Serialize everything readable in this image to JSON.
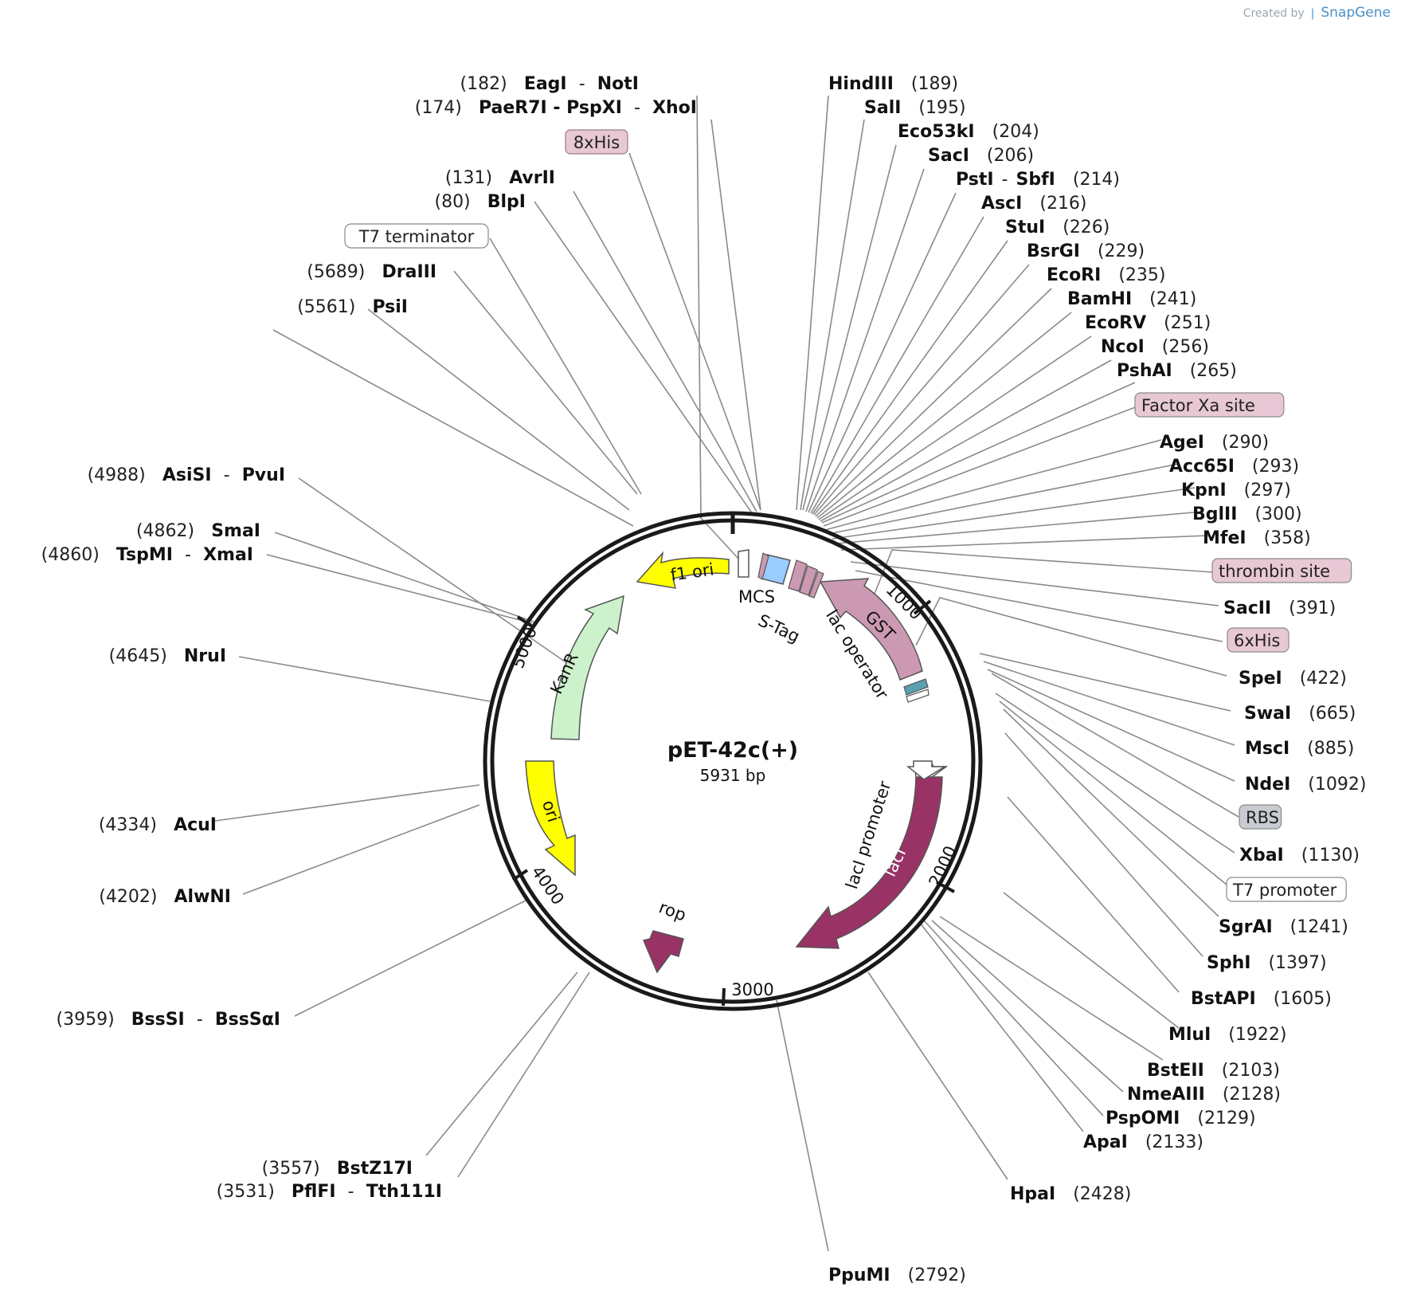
{
  "credit": {
    "prefix": "Created by",
    "brand": "SnapGene"
  },
  "plasmid": {
    "name": "pET-42c(+)",
    "length_label": "5931 bp",
    "length": 5931
  },
  "ticks": [
    {
      "position": 1000,
      "label": "1000"
    },
    {
      "position": 2000,
      "label": "2000"
    },
    {
      "position": 3000,
      "label": "3000"
    },
    {
      "position": 4000,
      "label": "4000"
    },
    {
      "position": 5000,
      "label": "5000"
    }
  ],
  "features": [
    {
      "name": "f1 ori",
      "color": "#ffff00",
      "text_color": "#111111"
    },
    {
      "name": "KanR",
      "color": "#ccf2cc",
      "text_color": "#111111"
    },
    {
      "name": "ori",
      "color": "#ffff00",
      "text_color": "#111111"
    },
    {
      "name": "rop",
      "color": "#993366",
      "text_color": "#111111"
    },
    {
      "name": "lacI",
      "color": "#993366",
      "text_color": "#ffffff"
    },
    {
      "name": "lacI promoter",
      "color": "#ffffff",
      "text_color": "#111111"
    },
    {
      "name": "GST",
      "color": "#cc99b2",
      "text_color": "#111111"
    },
    {
      "name": "lac operator",
      "color": "#5aa0b0",
      "text_color": "#111111"
    },
    {
      "name": "MCS",
      "color": "#99ccff",
      "text_color": "#111111"
    },
    {
      "name": "S-Tag",
      "color": "#cc99b2",
      "text_color": "#111111"
    }
  ],
  "left_labels": [
    {
      "name": "NotI",
      "prefix": "EagI",
      "num": "(182)"
    },
    {
      "name": "XhoI",
      "prefix": "PaeR7I  -  PspXI",
      "num": "(174)"
    },
    {
      "name": "8xHis",
      "boxed": true
    },
    {
      "name": "AvrII",
      "num": "(131)"
    },
    {
      "name": "BlpI",
      "num": "(80)"
    },
    {
      "name": "T7 terminator",
      "boxed": true
    },
    {
      "name": "DraIII",
      "num": "(5689)"
    },
    {
      "name": "PsiI",
      "num": "(5561)"
    },
    {
      "name": "PvuI",
      "prefix": "AsiSI",
      "num": "(4988)"
    },
    {
      "name": "SmaI",
      "num": "(4862)"
    },
    {
      "name": "XmaI",
      "prefix": "TspMI",
      "num": "(4860)"
    },
    {
      "name": "NruI",
      "num": "(4645)"
    },
    {
      "name": "AcuI",
      "num": "(4334)"
    },
    {
      "name": "AlwNI",
      "num": "(4202)"
    },
    {
      "name": "BssSαI",
      "prefix": "BssSI",
      "num": "(3959)"
    },
    {
      "name": "BstZ17I",
      "num": "(3557)"
    },
    {
      "name": "Tth111I",
      "prefix": "PflFI",
      "num": "(3531)"
    }
  ],
  "right_labels": [
    {
      "name": "HindIII",
      "num": "(189)"
    },
    {
      "name": "SalI",
      "num": "(195)"
    },
    {
      "name": "Eco53kI",
      "num": "(204)"
    },
    {
      "name": "SacI",
      "num": "(206)"
    },
    {
      "name": "PstI",
      "suffix": "SbfI",
      "num": "(214)"
    },
    {
      "name": "AscI",
      "num": "(216)"
    },
    {
      "name": "StuI",
      "num": "(226)"
    },
    {
      "name": "BsrGI",
      "num": "(229)"
    },
    {
      "name": "EcoRI",
      "num": "(235)"
    },
    {
      "name": "BamHI",
      "num": "(241)"
    },
    {
      "name": "EcoRV",
      "num": "(251)"
    },
    {
      "name": "NcoI",
      "num": "(256)"
    },
    {
      "name": "PshAI",
      "num": "(265)"
    },
    {
      "name": "Factor Xa site",
      "boxed": true,
      "box_color": "#e8c8d4"
    },
    {
      "name": "AgeI",
      "num": "(290)"
    },
    {
      "name": "Acc65I",
      "num": "(293)"
    },
    {
      "name": "KpnI",
      "num": "(297)"
    },
    {
      "name": "BglII",
      "num": "(300)"
    },
    {
      "name": "MfeI",
      "num": "(358)"
    },
    {
      "name": "thrombin site",
      "boxed": true,
      "box_color": "#e8c8d4"
    },
    {
      "name": "SacII",
      "num": "(391)"
    },
    {
      "name": "6xHis",
      "boxed": true,
      "box_color": "#e8c8d4"
    },
    {
      "name": "SpeI",
      "num": "(422)"
    },
    {
      "name": "SwaI",
      "num": "(665)"
    },
    {
      "name": "MscI",
      "num": "(885)"
    },
    {
      "name": "NdeI",
      "num": "(1092)"
    },
    {
      "name": "RBS",
      "boxed": true,
      "box_color": "#c8ccd0"
    },
    {
      "name": "XbaI",
      "num": "(1130)"
    },
    {
      "name": "T7 promoter",
      "boxed": true,
      "box_color": "#ffffff"
    },
    {
      "name": "SgrAI",
      "num": "(1241)"
    },
    {
      "name": "SphI",
      "num": "(1397)"
    },
    {
      "name": "BstAPI",
      "num": "(1605)"
    },
    {
      "name": "MluI",
      "num": "(1922)"
    },
    {
      "name": "BstEII",
      "num": "(2103)"
    },
    {
      "name": "NmeAIII",
      "num": "(2128)"
    },
    {
      "name": "PspOMI",
      "num": "(2129)"
    },
    {
      "name": "ApaI",
      "num": "(2133)"
    },
    {
      "name": "HpaI",
      "num": "(2428)"
    },
    {
      "name": "PpuMI",
      "num": "(2792)"
    }
  ]
}
